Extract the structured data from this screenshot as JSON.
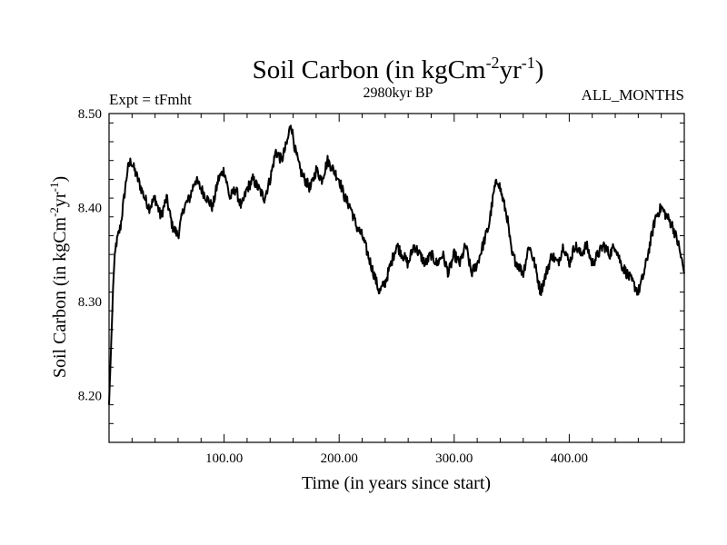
{
  "chart_data": {
    "type": "line",
    "title": {
      "main": "Soil Carbon (in kgCm",
      "sup1": "-2",
      "mid": "yr",
      "sup2": "-1",
      "end": ")"
    },
    "subtitle": "2980kyr BP",
    "experiment_label": "Expt = tFmht",
    "months_label": "ALL_MONTHS",
    "xlabel": "Time (in years since start)",
    "ylabel": {
      "main": "Soil Carbon (in kgCm",
      "sup1": "-2",
      "mid": "yr",
      "sup2": "-1",
      "end": ")"
    },
    "xlim": [
      0,
      500
    ],
    "ylim": [
      8.15,
      8.5
    ],
    "xticks": [
      100,
      200,
      300,
      400
    ],
    "xtick_labels": [
      "100.00",
      "200.00",
      "300.00",
      "400.00"
    ],
    "yticks": [
      8.2,
      8.3,
      8.4,
      8.5
    ],
    "ytick_labels": [
      "8.20",
      "8.30",
      "8.40",
      "8.50"
    ],
    "series": [
      {
        "name": "Soil Carbon",
        "color": "#000000",
        "x": [
          0,
          2,
          4,
          6,
          8,
          10,
          13,
          16,
          19,
          22,
          25,
          28,
          31,
          35,
          40,
          45,
          50,
          55,
          60,
          65,
          70,
          75,
          80,
          85,
          90,
          95,
          100,
          105,
          110,
          115,
          120,
          125,
          130,
          135,
          140,
          145,
          150,
          155,
          158,
          162,
          166,
          170,
          175,
          180,
          185,
          190,
          195,
          200,
          205,
          210,
          215,
          220,
          225,
          230,
          235,
          240,
          245,
          250,
          255,
          260,
          265,
          270,
          275,
          280,
          285,
          290,
          295,
          300,
          305,
          310,
          315,
          320,
          325,
          330,
          335,
          338,
          342,
          346,
          350,
          355,
          360,
          365,
          370,
          375,
          380,
          385,
          390,
          395,
          400,
          405,
          410,
          415,
          420,
          425,
          430,
          435,
          440,
          445,
          450,
          455,
          460,
          465,
          470,
          475,
          480,
          485,
          490,
          495,
          500
        ],
        "values": [
          8.19,
          8.26,
          8.33,
          8.36,
          8.37,
          8.38,
          8.41,
          8.44,
          8.45,
          8.44,
          8.43,
          8.42,
          8.41,
          8.4,
          8.41,
          8.39,
          8.41,
          8.38,
          8.37,
          8.4,
          8.41,
          8.43,
          8.42,
          8.41,
          8.4,
          8.43,
          8.44,
          8.41,
          8.42,
          8.4,
          8.42,
          8.43,
          8.42,
          8.41,
          8.43,
          8.46,
          8.45,
          8.47,
          8.49,
          8.46,
          8.44,
          8.43,
          8.42,
          8.44,
          8.43,
          8.45,
          8.44,
          8.43,
          8.41,
          8.4,
          8.38,
          8.37,
          8.35,
          8.33,
          8.31,
          8.32,
          8.34,
          8.36,
          8.35,
          8.34,
          8.36,
          8.35,
          8.34,
          8.35,
          8.34,
          8.35,
          8.33,
          8.35,
          8.34,
          8.36,
          8.33,
          8.34,
          8.36,
          8.38,
          8.42,
          8.43,
          8.41,
          8.39,
          8.35,
          8.34,
          8.33,
          8.36,
          8.34,
          8.31,
          8.33,
          8.35,
          8.34,
          8.36,
          8.34,
          8.36,
          8.35,
          8.36,
          8.34,
          8.35,
          8.36,
          8.35,
          8.36,
          8.34,
          8.33,
          8.32,
          8.31,
          8.33,
          8.36,
          8.39,
          8.4,
          8.39,
          8.38,
          8.36,
          8.33
        ]
      }
    ]
  }
}
